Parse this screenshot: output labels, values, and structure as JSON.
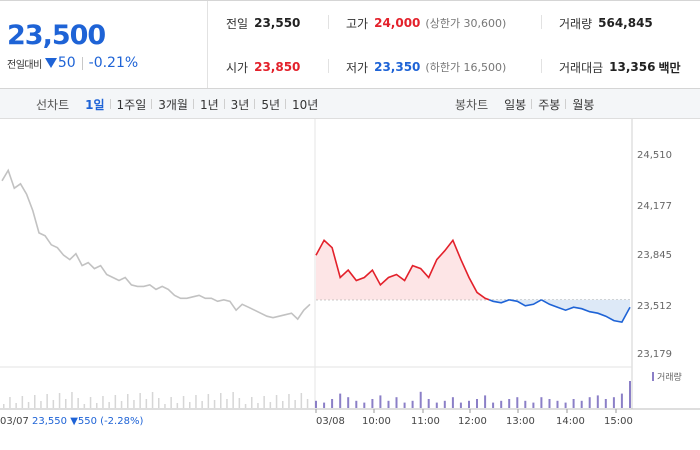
{
  "price": {
    "current": "23,500",
    "change_label": "전일대비",
    "change": "50",
    "change_pct": "-0.21%",
    "color_down": "#1e63d6",
    "color_up": "#e3212b"
  },
  "quotes": {
    "prev_close": {
      "label": "전일",
      "value": "23,550"
    },
    "high": {
      "label": "고가",
      "value": "24,000",
      "note": "(상한가 30,600)"
    },
    "volume": {
      "label": "거래량",
      "value": "564,845"
    },
    "open": {
      "label": "시가",
      "value": "23,850"
    },
    "low": {
      "label": "저가",
      "value": "23,350",
      "note": "(하한가 16,500)"
    },
    "trade_value": {
      "label": "거래대금",
      "value": "13,356",
      "unit": "백만"
    }
  },
  "line_tabs": {
    "title": "선차트",
    "items": [
      "1일",
      "1주일",
      "3개월",
      "1년",
      "3년",
      "5년",
      "10년"
    ],
    "active": "1일"
  },
  "candle_tabs": {
    "title": "봉차트",
    "items": [
      "일봉",
      "주봉",
      "월봉"
    ]
  },
  "chart_data": {
    "type": "line",
    "yticks": [
      "24,510",
      "24,177",
      "23,845",
      "23,512",
      "23,179"
    ],
    "ylim": [
      23179,
      24510
    ],
    "reference_price": 23550,
    "xticks": [
      "03/08",
      "10:00",
      "11:00",
      "12:00",
      "13:00",
      "14:00",
      "15:00"
    ],
    "volume_label": "거래량",
    "prev_day": {
      "date": "03/07",
      "close": "23,550",
      "change": "▼550",
      "change_pct": "(-2.28%)"
    },
    "series": [
      {
        "x": [
          0,
          2,
          4,
          6,
          8,
          10,
          12,
          14,
          16,
          18,
          20,
          22,
          24,
          26,
          28,
          30,
          32,
          34,
          36,
          38,
          40,
          42,
          44,
          46,
          48,
          50,
          52,
          54,
          56,
          58,
          60,
          62,
          64,
          66,
          68,
          70,
          72,
          74,
          76,
          78,
          80,
          82,
          84,
          86,
          88,
          90,
          92,
          94,
          96,
          98,
          100
        ],
        "y": [
          24350,
          24420,
          24300,
          24330,
          24260,
          24150,
          24000,
          23980,
          23920,
          23900,
          23850,
          23820,
          23860,
          23780,
          23800,
          23760,
          23780,
          23720,
          23700,
          23680,
          23700,
          23650,
          23640,
          23640,
          23650,
          23620,
          23640,
          23620,
          23580,
          23560,
          23560,
          23570,
          23580,
          23560,
          23560,
          23540,
          23550,
          23540,
          23480,
          23520,
          23500,
          23480,
          23460,
          23440,
          23430,
          23440,
          23450,
          23460,
          23420,
          23480,
          23520
        ]
      },
      {
        "x": [
          "09:00",
          "09:10",
          "09:20",
          "09:30",
          "09:40",
          "09:50",
          "10:00",
          "10:10",
          "10:20",
          "10:30",
          "10:40",
          "10:50",
          "11:00",
          "11:10",
          "11:20",
          "11:30",
          "11:40",
          "11:50",
          "12:00",
          "12:10",
          "12:20",
          "12:30",
          "12:40",
          "12:50",
          "13:00",
          "13:10",
          "13:20",
          "13:30",
          "13:40",
          "13:50",
          "14:00",
          "14:10",
          "14:20",
          "14:30",
          "14:40",
          "14:50",
          "15:00",
          "15:10",
          "15:20",
          "15:30"
        ],
        "y": [
          23850,
          23950,
          23900,
          23700,
          23750,
          23680,
          23700,
          23750,
          23650,
          23700,
          23720,
          23680,
          23780,
          23760,
          23700,
          23820,
          23880,
          23950,
          23820,
          23700,
          23600,
          23560,
          23540,
          23530,
          23550,
          23540,
          23510,
          23520,
          23550,
          23520,
          23500,
          23480,
          23500,
          23490,
          23470,
          23460,
          23440,
          23410,
          23400,
          23500
        ]
      }
    ],
    "volume": [
      4,
      3,
      5,
      8,
      6,
      4,
      3,
      5,
      7,
      4,
      6,
      3,
      4,
      9,
      5,
      3,
      4,
      6,
      3,
      4,
      5,
      7,
      3,
      4,
      5,
      6,
      4,
      3,
      6,
      5,
      4,
      3,
      5,
      4,
      6,
      7,
      5,
      6,
      8,
      15
    ],
    "area_fill_up": "#fde5e6",
    "area_fill_down": "#dde9f7",
    "line_up": "#e3212b",
    "line_down": "#1e63d6",
    "line_prev": "#c2c2c2",
    "volume_color": "#8b7fc7"
  }
}
